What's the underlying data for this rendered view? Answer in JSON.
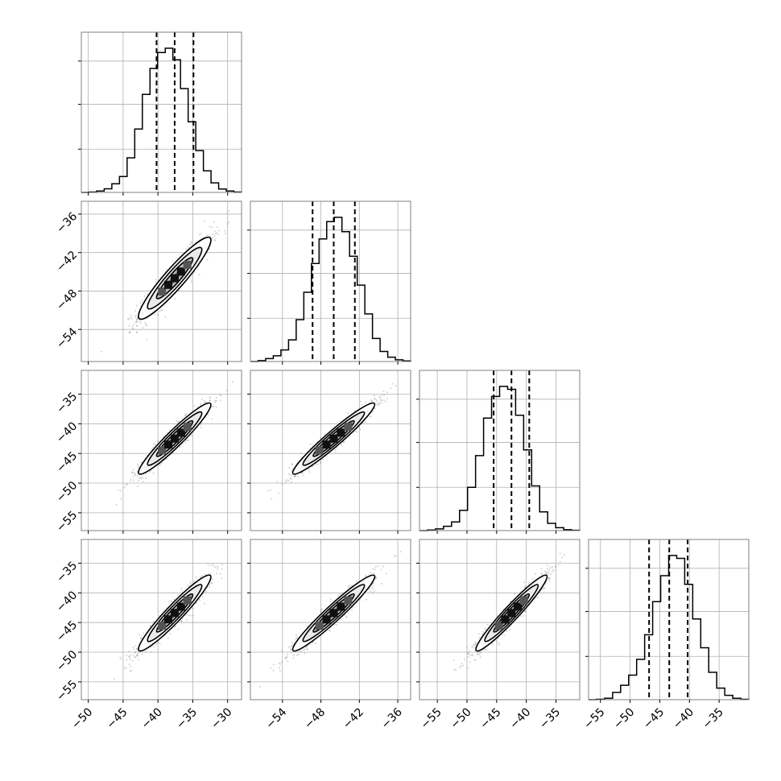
{
  "chart_data": {
    "type": "scatter",
    "subtype": "corner-plot",
    "description_visible": false,
    "grid": true,
    "colors": {
      "frame": "#808080",
      "grid": "#b0b0b0",
      "line": "#000000",
      "points": "#808080",
      "background": "#ffffff"
    },
    "params": [
      {
        "index": 0,
        "range": [
          -51,
          -28
        ],
        "ticks": [
          -50,
          -45,
          -40,
          -35,
          -30
        ],
        "tick_labels": [
          "−50",
          "−45",
          "−40",
          "−35",
          "−30"
        ],
        "quantiles": [
          -40.2,
          -37.6,
          -34.9
        ],
        "hist": [
          0,
          0.003,
          0.01,
          0.025,
          0.06,
          0.11,
          0.24,
          0.44,
          0.68,
          0.86,
          0.97,
          1.0,
          0.92,
          0.72,
          0.49,
          0.29,
          0.15,
          0.066,
          0.024,
          0.01,
          0.003
        ]
      },
      {
        "index": 1,
        "range": [
          -59,
          -34
        ],
        "ticks": [
          -54,
          -48,
          -42,
          -36
        ],
        "tick_labels": [
          "−54",
          "−48",
          "−42",
          "−36"
        ],
        "quantiles": [
          -49.3,
          -46.0,
          -42.7
        ],
        "hist": [
          0,
          0.006,
          0.02,
          0.04,
          0.08,
          0.15,
          0.29,
          0.48,
          0.68,
          0.85,
          0.97,
          1.0,
          0.9,
          0.73,
          0.53,
          0.33,
          0.16,
          0.07,
          0.03,
          0.012,
          0.004
        ]
      },
      {
        "index": 2,
        "range": [
          -58,
          -31
        ],
        "ticks": [
          -55,
          -50,
          -45,
          -40,
          -35
        ],
        "tick_labels": [
          "−55",
          "−50",
          "−45",
          "−40",
          "−35"
        ],
        "quantiles": [
          -45.5,
          -42.5,
          -39.5
        ],
        "hist": [
          0,
          0.004,
          0.012,
          0.03,
          0.06,
          0.14,
          0.3,
          0.52,
          0.78,
          0.93,
          1.0,
          0.98,
          0.8,
          0.56,
          0.31,
          0.13,
          0.05,
          0.02,
          0.006,
          0.002
        ]
      },
      {
        "index": 3,
        "range": [
          -57,
          -30
        ],
        "ticks": [
          -55,
          -50,
          -45,
          -40,
          -35
        ],
        "tick_labels": [
          "−55",
          "−50",
          "−45",
          "−40",
          "−35"
        ],
        "quantiles": [
          -46.8,
          -43.4,
          -40.3
        ],
        "hist": [
          0,
          0.003,
          0.01,
          0.05,
          0.1,
          0.17,
          0.28,
          0.45,
          0.68,
          0.86,
          1.0,
          0.98,
          0.8,
          0.56,
          0.36,
          0.19,
          0.08,
          0.03,
          0.01,
          0.003
        ]
      }
    ],
    "row_tick_params": {
      "1": 1,
      "2": 2,
      "3": 2
    },
    "pairs": [
      {
        "x": 0,
        "y": 1,
        "mean": [
          -37.6,
          -46.0
        ],
        "sd": [
          2.6,
          3.2
        ],
        "corr": 0.93
      },
      {
        "x": 0,
        "y": 2,
        "mean": [
          -37.6,
          -42.5
        ],
        "sd": [
          2.6,
          3.0
        ],
        "corr": 0.95
      },
      {
        "x": 1,
        "y": 2,
        "mean": [
          -46.0,
          -42.5
        ],
        "sd": [
          3.2,
          3.0
        ],
        "corr": 0.96
      },
      {
        "x": 0,
        "y": 3,
        "mean": [
          -37.6,
          -43.4
        ],
        "sd": [
          2.6,
          3.2
        ],
        "corr": 0.95
      },
      {
        "x": 1,
        "y": 3,
        "mean": [
          -46.0,
          -43.4
        ],
        "sd": [
          3.2,
          3.2
        ],
        "corr": 0.96
      },
      {
        "x": 2,
        "y": 3,
        "mean": [
          -42.5,
          -43.4
        ],
        "sd": [
          3.0,
          3.2
        ],
        "corr": 0.96
      }
    ],
    "contour_levels": [
      0.5,
      1.0,
      1.5,
      2.0
    ],
    "n_samples": 900
  }
}
